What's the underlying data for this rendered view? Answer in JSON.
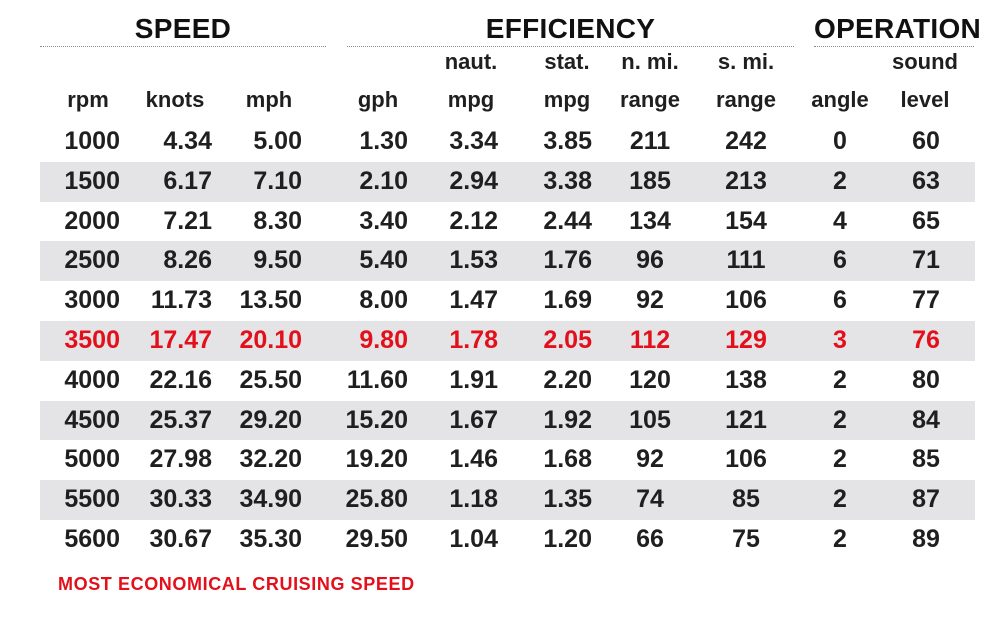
{
  "groups": {
    "speed": "SPEED",
    "efficiency": "EFFICIENCY",
    "operation": "OPERATION"
  },
  "columns": [
    {
      "key": "rpm",
      "top": "",
      "bottom": "rpm"
    },
    {
      "key": "knots",
      "top": "",
      "bottom": "knots"
    },
    {
      "key": "mph",
      "top": "",
      "bottom": "mph"
    },
    {
      "key": "gph",
      "top": "",
      "bottom": "gph"
    },
    {
      "key": "naut_mpg",
      "top": "naut.",
      "bottom": "mpg"
    },
    {
      "key": "stat_mpg",
      "top": "stat.",
      "bottom": "mpg"
    },
    {
      "key": "nmi_range",
      "top": "n. mi.",
      "bottom": "range"
    },
    {
      "key": "smi_range",
      "top": "s. mi.",
      "bottom": "range"
    },
    {
      "key": "angle",
      "top": "",
      "bottom": "angle"
    },
    {
      "key": "sound_level",
      "top": "sound",
      "bottom": "level"
    }
  ],
  "rows": [
    [
      "1000",
      "4.34",
      "5.00",
      "1.30",
      "3.34",
      "3.85",
      "211",
      "242",
      "0",
      "60"
    ],
    [
      "1500",
      "6.17",
      "7.10",
      "2.10",
      "2.94",
      "3.38",
      "185",
      "213",
      "2",
      "63"
    ],
    [
      "2000",
      "7.21",
      "8.30",
      "3.40",
      "2.12",
      "2.44",
      "134",
      "154",
      "4",
      "65"
    ],
    [
      "2500",
      "8.26",
      "9.50",
      "5.40",
      "1.53",
      "1.76",
      "96",
      "111",
      "6",
      "71"
    ],
    [
      "3000",
      "11.73",
      "13.50",
      "8.00",
      "1.47",
      "1.69",
      "92",
      "106",
      "6",
      "77"
    ],
    [
      "3500",
      "17.47",
      "20.10",
      "9.80",
      "1.78",
      "2.05",
      "112",
      "129",
      "3",
      "76"
    ],
    [
      "4000",
      "22.16",
      "25.50",
      "11.60",
      "1.91",
      "2.20",
      "120",
      "138",
      "2",
      "80"
    ],
    [
      "4500",
      "25.37",
      "29.20",
      "15.20",
      "1.67",
      "1.92",
      "105",
      "121",
      "2",
      "84"
    ],
    [
      "5000",
      "27.98",
      "32.20",
      "19.20",
      "1.46",
      "1.68",
      "92",
      "106",
      "2",
      "85"
    ],
    [
      "5500",
      "30.33",
      "34.90",
      "25.80",
      "1.18",
      "1.35",
      "74",
      "85",
      "2",
      "87"
    ],
    [
      "5600",
      "30.67",
      "35.30",
      "29.50",
      "1.04",
      "1.20",
      "66",
      "75",
      "2",
      "89"
    ]
  ],
  "highlight_row": 5,
  "footnote": "MOST ECONOMICAL CRUISING SPEED",
  "colors": {
    "highlight": "#e3101c",
    "row_shade": "#e4e4e6",
    "text": "#1f1f1f"
  }
}
